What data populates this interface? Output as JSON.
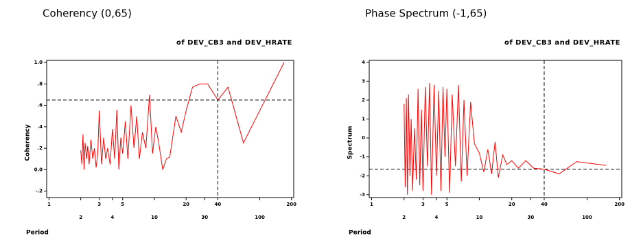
{
  "chart_data": [
    {
      "type": "line",
      "title": "Coherency (0,65)",
      "subtitle": "of DEV_CB3 and DEV_HRATE",
      "ylabel": "Coherency",
      "xlabel": "Period",
      "xscale": "log",
      "xlim": [
        0.95,
        210
      ],
      "xticks": [
        1,
        2,
        3,
        4,
        5,
        10,
        20,
        30,
        40,
        100,
        200
      ],
      "ylim": [
        -0.26,
        1.02
      ],
      "yticks": [
        {
          "value": -0.2,
          "label": "-.2"
        },
        {
          "value": 0,
          "label": "0.0"
        },
        {
          "value": 0.2,
          "label": ".2"
        },
        {
          "value": 0.4,
          "label": ".4"
        },
        {
          "value": 0.6,
          "label": ".6"
        },
        {
          "value": 0.8,
          "label": ".8"
        },
        {
          "value": 1.0,
          "label": "1.0"
        }
      ],
      "hlines": [
        0.65
      ],
      "vlines": [
        40
      ],
      "color": "#ff0000",
      "x": [
        2.0,
        2.05,
        2.1,
        2.15,
        2.2,
        2.27,
        2.33,
        2.4,
        2.5,
        2.6,
        2.7,
        2.8,
        2.9,
        3.0,
        3.15,
        3.3,
        3.45,
        3.6,
        3.8,
        4.0,
        4.2,
        4.4,
        4.6,
        4.8,
        5.0,
        5.3,
        5.6,
        6.0,
        6.4,
        6.8,
        7.2,
        7.7,
        8.3,
        9.0,
        9.6,
        10.3,
        11.0,
        12.0,
        13.0,
        14.0,
        16.0,
        18.0,
        20.0,
        23.0,
        27.0,
        32.0,
        40.0,
        50.0,
        70.0,
        170.0
      ],
      "values": [
        0.18,
        0.05,
        0.33,
        0.0,
        0.25,
        0.1,
        0.22,
        0.05,
        0.28,
        0.1,
        0.2,
        0.02,
        0.15,
        0.55,
        0.05,
        0.3,
        0.1,
        0.2,
        0.05,
        0.38,
        0.1,
        0.56,
        0.0,
        0.3,
        0.15,
        0.45,
        0.1,
        0.6,
        0.2,
        0.5,
        0.1,
        0.35,
        0.2,
        0.7,
        0.15,
        0.4,
        0.25,
        0.0,
        0.1,
        0.12,
        0.5,
        0.35,
        0.55,
        0.77,
        0.8,
        0.8,
        0.65,
        0.77,
        0.25,
        1.0
      ]
    },
    {
      "type": "line",
      "title": "Phase Spectrum (-1,65)",
      "subtitle": "of DEV_CB3 and DEV_HRATE",
      "ylabel": "Spectrum",
      "xlabel": "Period",
      "xscale": "log",
      "xlim": [
        0.95,
        210
      ],
      "xticks": [
        1,
        2,
        3,
        4,
        5,
        10,
        20,
        30,
        40,
        100,
        200
      ],
      "ylim": [
        -3.15,
        4.1
      ],
      "yticks": [
        -3,
        -2,
        -1,
        0,
        1,
        2,
        3,
        4
      ],
      "hlines": [
        -1.65
      ],
      "vlines": [
        40
      ],
      "color": "#ff0000",
      "x": [
        2.0,
        2.05,
        2.1,
        2.15,
        2.2,
        2.27,
        2.33,
        2.4,
        2.5,
        2.6,
        2.7,
        2.8,
        2.9,
        3.0,
        3.15,
        3.3,
        3.45,
        3.6,
        3.8,
        4.0,
        4.2,
        4.4,
        4.6,
        4.8,
        5.0,
        5.3,
        5.6,
        6.0,
        6.4,
        6.8,
        7.2,
        7.7,
        8.3,
        9.0,
        10.0,
        11.0,
        12.0,
        13.0,
        14.0,
        15.0,
        16.5,
        18.0,
        20.0,
        23.0,
        27.0,
        32.0,
        40.0,
        55.0,
        80.0,
        150.0
      ],
      "values": [
        1.8,
        -2.6,
        2.1,
        -3.0,
        2.3,
        -2.0,
        1.0,
        -2.8,
        0.5,
        -2.2,
        2.6,
        -2.5,
        1.5,
        -2.8,
        2.7,
        -1.5,
        2.9,
        -3.0,
        2.8,
        -2.0,
        2.5,
        -2.8,
        2.7,
        -1.0,
        2.6,
        -2.9,
        2.3,
        -1.5,
        2.8,
        -2.3,
        2.0,
        -2.0,
        1.9,
        -0.3,
        -0.8,
        -1.8,
        -0.6,
        -1.9,
        -0.2,
        -2.1,
        -0.9,
        -1.4,
        -1.2,
        -1.6,
        -1.2,
        -1.6,
        -1.65,
        -1.9,
        -1.25,
        -1.45
      ]
    }
  ]
}
